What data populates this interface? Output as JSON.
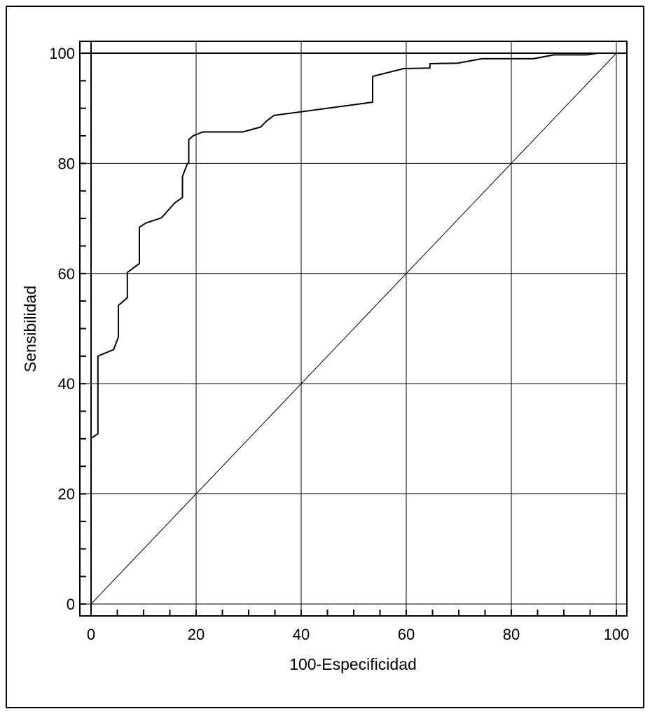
{
  "chart_data": {
    "type": "line",
    "title": "",
    "xlabel": "100-Especificidad",
    "ylabel": "Sensibilidad",
    "xlim": [
      0,
      100
    ],
    "ylim": [
      0,
      100
    ],
    "x_ticks": [
      "0",
      "20",
      "40",
      "60",
      "80",
      "100"
    ],
    "y_ticks": [
      "0",
      "20",
      "40",
      "60",
      "80",
      "100"
    ],
    "x_tick_values": [
      0,
      20,
      40,
      60,
      80,
      100
    ],
    "y_tick_values": [
      0,
      20,
      40,
      60,
      80,
      100
    ],
    "minor_tick_step": 5,
    "grid": true,
    "legend": "none",
    "series": [
      {
        "x": [
          0,
          0,
          1.3,
          1.3,
          4.3,
          5.2,
          5.2,
          6.9,
          6.9,
          9.2,
          9.2,
          10.5,
          13.4,
          15.9,
          17.4,
          17.4,
          18.3,
          18.6,
          18.6,
          19.4,
          21.3,
          28.9,
          32.3,
          33.3,
          34.8,
          53.6,
          53.6,
          59.5,
          64.5,
          64.5,
          69.8,
          74.4,
          84.2,
          88.1,
          94.4,
          96.4,
          100
        ],
        "y": [
          0,
          30.1,
          30.9,
          45,
          46.2,
          48.5,
          54.2,
          55.6,
          60.2,
          61.8,
          68.4,
          69.2,
          70.1,
          72.8,
          73.8,
          77.6,
          79.9,
          80.1,
          84.3,
          85.0,
          85.7,
          85.7,
          86.6,
          87.6,
          88.7,
          91.1,
          95.8,
          97.2,
          97.3,
          98.1,
          98.2,
          99.0,
          99.0,
          99.7,
          99.7,
          100,
          100
        ]
      },
      {
        "x": [
          0,
          100
        ],
        "y": [
          0,
          100
        ]
      }
    ]
  }
}
